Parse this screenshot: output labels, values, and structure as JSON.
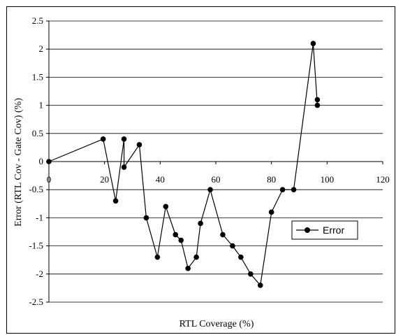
{
  "chart_data": {
    "type": "line",
    "title": "",
    "xlabel": "RTL Coverage (%)",
    "ylabel": "Error (RTL Cov - Gate Cov) (%)",
    "xlim": [
      0,
      120
    ],
    "ylim": [
      -2.5,
      2.5
    ],
    "x_ticks": [
      "0",
      "20",
      "40",
      "60",
      "80",
      "100",
      "120"
    ],
    "y_ticks": [
      "2.5",
      "2",
      "1.5",
      "1",
      "0.5",
      "0",
      "-0.5",
      "-1",
      "-1.5",
      "-2",
      "-2.5"
    ],
    "grid": "horizontal",
    "legend_position": "right",
    "series": [
      {
        "name": "Error",
        "color": "#000000",
        "marker": "circle",
        "x": [
          0,
          19.5,
          24,
          27,
          27,
          32.5,
          35,
          39,
          42,
          45.5,
          47.5,
          50,
          53,
          54.5,
          58,
          62.5,
          66,
          69,
          72.5,
          76,
          80,
          84,
          88,
          95,
          96.5,
          96.5
        ],
        "y": [
          0,
          0.4,
          -0.7,
          0.4,
          -0.1,
          0.3,
          -1.0,
          -1.7,
          -0.8,
          -1.3,
          -1.4,
          -1.9,
          -1.7,
          -1.1,
          -0.5,
          -1.3,
          -1.5,
          -1.7,
          -2.0,
          -2.2,
          -0.9,
          -0.5,
          -0.5,
          2.1,
          1.0,
          1.1
        ]
      }
    ]
  }
}
